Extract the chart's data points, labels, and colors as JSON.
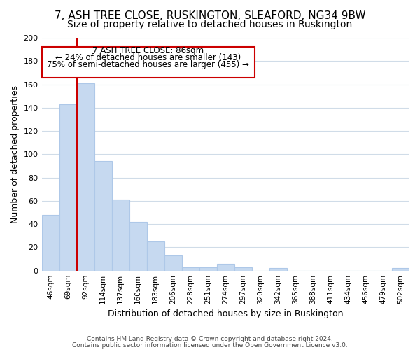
{
  "title": "7, ASH TREE CLOSE, RUSKINGTON, SLEAFORD, NG34 9BW",
  "subtitle": "Size of property relative to detached houses in Ruskington",
  "xlabel": "Distribution of detached houses by size in Ruskington",
  "ylabel": "Number of detached properties",
  "bar_labels": [
    "46sqm",
    "69sqm",
    "92sqm",
    "114sqm",
    "137sqm",
    "160sqm",
    "183sqm",
    "206sqm",
    "228sqm",
    "251sqm",
    "274sqm",
    "297sqm",
    "320sqm",
    "342sqm",
    "365sqm",
    "388sqm",
    "411sqm",
    "434sqm",
    "456sqm",
    "479sqm",
    "502sqm"
  ],
  "bar_values": [
    48,
    143,
    161,
    94,
    61,
    42,
    25,
    13,
    3,
    3,
    6,
    3,
    0,
    2,
    0,
    0,
    0,
    0,
    0,
    0,
    2
  ],
  "bar_color": "#c6d9f0",
  "bar_edge_color": "#aec8e8",
  "vline_color": "#cc0000",
  "ylim": [
    0,
    200
  ],
  "yticks": [
    0,
    20,
    40,
    60,
    80,
    100,
    120,
    140,
    160,
    180,
    200
  ],
  "annotation_title": "7 ASH TREE CLOSE: 86sqm",
  "annotation_line1": "← 24% of detached houses are smaller (143)",
  "annotation_line2": "75% of semi-detached houses are larger (455) →",
  "annotation_box_color": "#ffffff",
  "annotation_box_edge": "#cc0000",
  "footer_line1": "Contains HM Land Registry data © Crown copyright and database right 2024.",
  "footer_line2": "Contains public sector information licensed under the Open Government Licence v3.0.",
  "background_color": "#ffffff",
  "grid_color": "#d0dce8"
}
